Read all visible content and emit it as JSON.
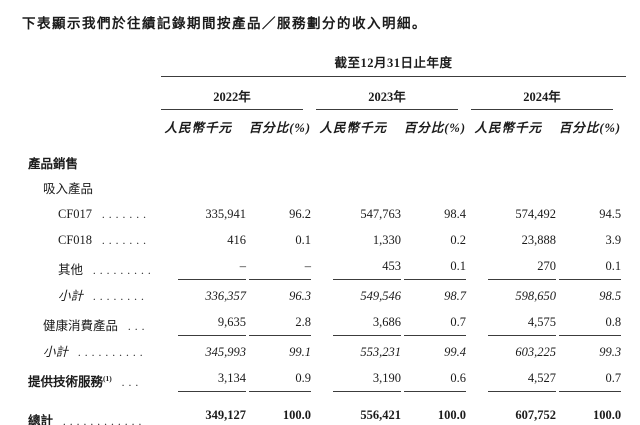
{
  "colors": {
    "text": "#1b1b1b",
    "rule": "#3c3c3c",
    "background": "#ffffff"
  },
  "page": {
    "title": "下表顯示我們於往績記錄期間按產品／服務劃分的收入明細。"
  },
  "table": {
    "period_header": "截至12月31日止年度",
    "year_groups": [
      {
        "year": "2022年",
        "amount_label": "人民幣千元",
        "percent_label": "百分比(%)"
      },
      {
        "year": "2023年",
        "amount_label": "人民幣千元",
        "percent_label": "百分比(%)"
      },
      {
        "year": "2024年",
        "amount_label": "人民幣千元",
        "percent_label": "百分比(%)"
      }
    ],
    "rows": [
      {
        "label": "產品銷售",
        "level": 0,
        "style": "bold",
        "dots": "",
        "values": null,
        "underline": "none"
      },
      {
        "label": "吸入產品",
        "level": 1,
        "style": "normal",
        "dots": "",
        "values": null,
        "underline": "none"
      },
      {
        "label": "CF017",
        "level": 2,
        "style": "normal",
        "dots": ".......",
        "values": [
          "335,941",
          "96.2",
          "547,763",
          "98.4",
          "574,492",
          "94.5"
        ],
        "underline": "none"
      },
      {
        "label": "CF018",
        "level": 2,
        "style": "normal",
        "dots": ".......",
        "values": [
          "416",
          "0.1",
          "1,330",
          "0.2",
          "23,888",
          "3.9"
        ],
        "underline": "none"
      },
      {
        "label": "其他",
        "level": 2,
        "style": "normal",
        "dots": ".........",
        "values": [
          "–",
          "–",
          "453",
          "0.1",
          "270",
          "0.1"
        ],
        "underline": "single"
      },
      {
        "label": "小計",
        "level": 2,
        "style": "italic",
        "dots": "........",
        "values": [
          "336,357",
          "96.3",
          "549,546",
          "98.7",
          "598,650",
          "98.5"
        ],
        "underline": "none"
      },
      {
        "label": "健康消費產品",
        "level": 1,
        "style": "normal",
        "dots": "...",
        "values": [
          "9,635",
          "2.8",
          "3,686",
          "0.7",
          "4,575",
          "0.8"
        ],
        "underline": "single"
      },
      {
        "label": "小計",
        "level": 1,
        "style": "italic",
        "dots": "..........",
        "values": [
          "345,993",
          "99.1",
          "553,231",
          "99.4",
          "603,225",
          "99.3"
        ],
        "underline": "none"
      },
      {
        "label": "提供技術服務",
        "note": "(1)",
        "level": 0,
        "style": "bold-label",
        "dots": "...",
        "values": [
          "3,134",
          "0.9",
          "3,190",
          "0.6",
          "4,527",
          "0.7"
        ],
        "underline": "single"
      },
      {
        "label": "總計",
        "level": 0,
        "style": "bold",
        "dots": "............",
        "values": [
          "349,127",
          "100.0",
          "556,421",
          "100.0",
          "607,752",
          "100.0"
        ],
        "underline": "double",
        "spaced": true
      }
    ]
  }
}
